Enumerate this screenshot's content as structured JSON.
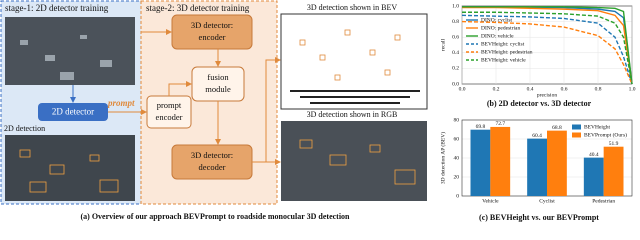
{
  "diagram": {
    "stage1": "stage-1: 2D detector training",
    "stage2": "stage-2: 3D detector training",
    "bev_title": "3D detection shown in BEV",
    "rgb_title": "3D detection shown in RGB",
    "encoder": [
      "3D detector:",
      "encoder"
    ],
    "fusion": [
      "fusion",
      "module"
    ],
    "prompt_encoder": [
      "prompt",
      "encoder"
    ],
    "decoder": [
      "3D detector:",
      "decoder"
    ],
    "detector2d": "2D detector",
    "prompt": "prompt",
    "detection2d": "2D detection",
    "caption": "(a) Overview of our approach BEVPrompt to roadside monocular 3D detection"
  },
  "chart_data": [
    {
      "type": "line",
      "caption": "(b) 2D detector vs. 3D detector",
      "x_label": "precision",
      "y_label": "recall",
      "x": [
        0,
        0.2,
        0.4,
        0.6,
        0.8,
        0.9,
        0.95,
        1.0
      ],
      "xlim": [
        0,
        1
      ],
      "ylim": [
        0,
        1
      ],
      "xticks": [
        {
          "value": 0,
          "label": "0.0"
        },
        {
          "value": 0.2,
          "label": "0.2"
        },
        {
          "value": 0.4,
          "label": "0.4"
        },
        {
          "value": 0.6,
          "label": "0.6"
        },
        {
          "value": 0.8,
          "label": "0.8"
        },
        {
          "value": 1,
          "label": "1.0"
        }
      ],
      "yticks": [
        {
          "value": 0,
          "label": "0.0"
        },
        {
          "value": 0.2,
          "label": "0.2"
        },
        {
          "value": 0.4,
          "label": "0.4"
        },
        {
          "value": 0.6,
          "label": "0.6"
        },
        {
          "value": 0.8,
          "label": "0.8"
        },
        {
          "value": 1,
          "label": "1.0"
        }
      ],
      "grid": true,
      "legend": "left",
      "series": [
        {
          "name": "DINO: cyclist",
          "color": "#1f77b4",
          "style": "solid",
          "values": [
            0.99,
            0.99,
            0.98,
            0.98,
            0.96,
            0.93,
            0.85,
            0.0
          ]
        },
        {
          "name": "DINO: pedestrian",
          "color": "#ff7f0e",
          "style": "solid",
          "values": [
            0.98,
            0.98,
            0.97,
            0.96,
            0.94,
            0.88,
            0.75,
            0.0
          ]
        },
        {
          "name": "DINO: vehicle",
          "color": "#2ca02c",
          "style": "solid",
          "values": [
            0.99,
            0.99,
            0.99,
            0.99,
            0.98,
            0.97,
            0.93,
            0.0
          ]
        },
        {
          "name": "BEVHeight: cyclist",
          "color": "#1f77b4",
          "style": "dashed",
          "values": [
            0.88,
            0.87,
            0.86,
            0.84,
            0.78,
            0.6,
            0.35,
            0.0
          ]
        },
        {
          "name": "BEVHeight: pedestrian",
          "color": "#ff7f0e",
          "style": "dashed",
          "values": [
            0.8,
            0.79,
            0.77,
            0.73,
            0.62,
            0.45,
            0.25,
            0.0
          ]
        },
        {
          "name": "BEVHeight: vehicle",
          "color": "#2ca02c",
          "style": "dashed",
          "values": [
            0.92,
            0.92,
            0.91,
            0.9,
            0.87,
            0.78,
            0.6,
            0.0
          ]
        }
      ]
    },
    {
      "type": "bar",
      "caption": "(c) BEVHeight vs. our BEVPrompt",
      "y_label": "3D detection AP (BEV)",
      "categories": [
        "Vehicle",
        "Cyclist",
        "Pedestrian"
      ],
      "ylim": [
        0,
        80
      ],
      "yticks": [
        0,
        20,
        40,
        60,
        80
      ],
      "grid": true,
      "legend": "upper right",
      "series": [
        {
          "name": "BEVHeight",
          "color": "#1f77b4",
          "values": [
            69.8,
            60.4,
            40.4
          ]
        },
        {
          "name": "BEVPrompt (Ours)",
          "color": "#ff7f0e",
          "values": [
            72.7,
            68.8,
            51.9
          ]
        }
      ]
    }
  ]
}
